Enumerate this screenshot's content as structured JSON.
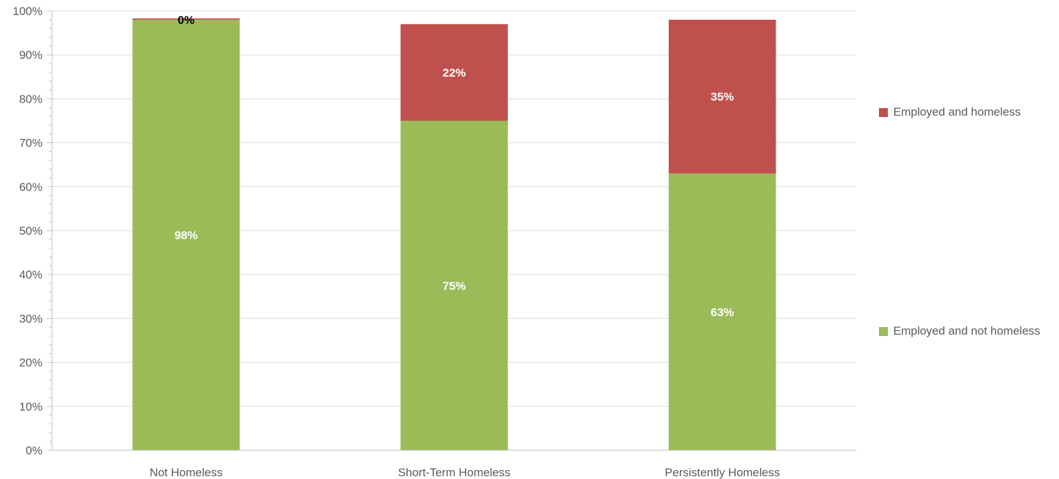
{
  "chart_data": {
    "type": "bar",
    "stacked": true,
    "categories": [
      "Not Homeless",
      "Short-Term Homeless",
      "Persistently Homeless"
    ],
    "series": [
      {
        "name": "Employed and not homeless",
        "values": [
          98,
          75,
          63
        ],
        "labels": [
          "98%",
          "75%",
          "63%"
        ],
        "color": "#9BBB59",
        "label_color": "#FFFFFF"
      },
      {
        "name": "Employed and homeless",
        "values": [
          0.3,
          22,
          35
        ],
        "labels": [
          "0%",
          "22%",
          "35%"
        ],
        "color": "#C0504D",
        "label_color": "#FFFFFF"
      }
    ],
    "y_ticks": [
      "0%",
      "10%",
      "20%",
      "30%",
      "40%",
      "50%",
      "60%",
      "70%",
      "80%",
      "90%",
      "100%"
    ],
    "ylim": [
      0,
      100
    ],
    "grid": true,
    "legend_position": "right"
  },
  "legend": [
    {
      "label": "Employed and homeless",
      "color": "#C0504D"
    },
    {
      "label": "Employed and not homeless",
      "color": "#9BBB59"
    }
  ]
}
